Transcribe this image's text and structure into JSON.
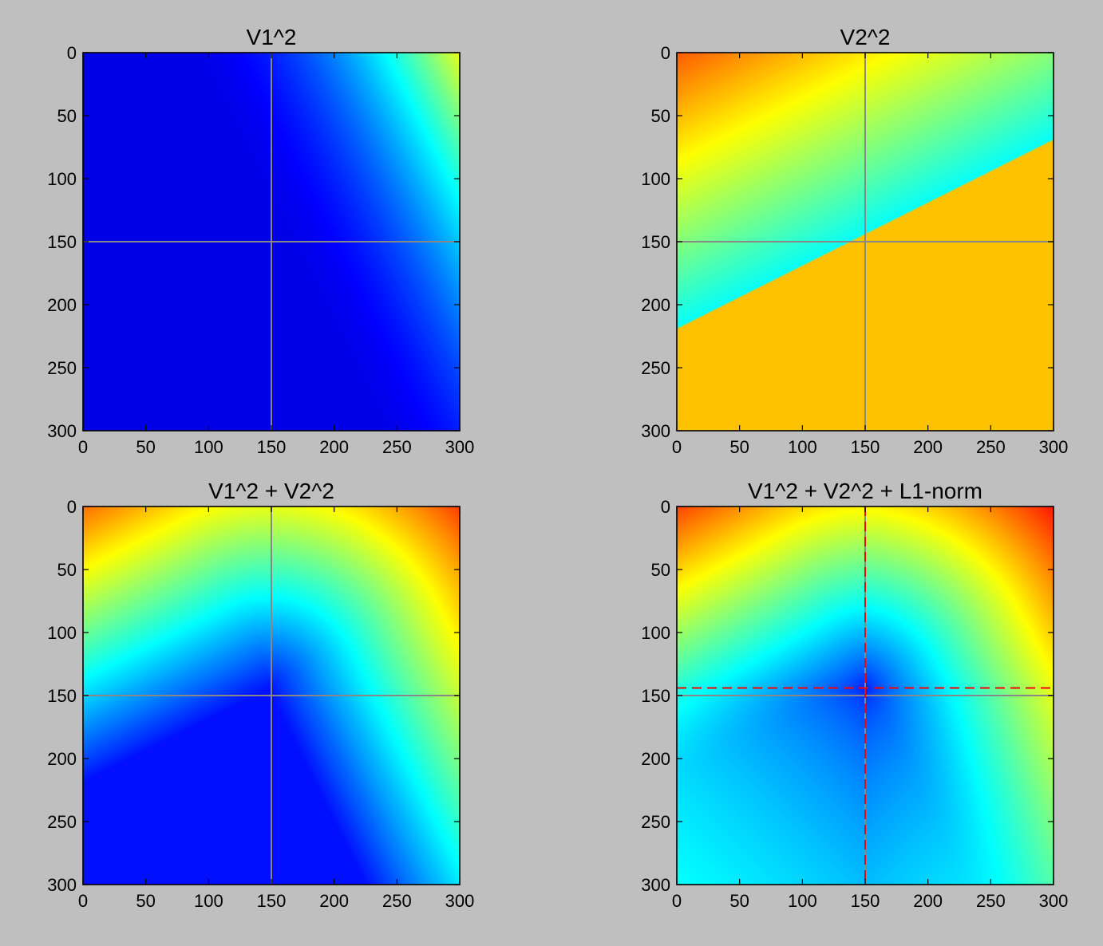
{
  "figure": {
    "background": "#bfbfbf"
  },
  "chart_data": [
    {
      "type": "heatmap",
      "title": "V1^2",
      "xlabel": "",
      "ylabel": "",
      "xlim": [
        0,
        300
      ],
      "ylim": [
        300,
        0
      ],
      "x_ticks": [
        "0",
        "50",
        "100",
        "150",
        "200",
        "250",
        "300"
      ],
      "y_ticks": [
        "0",
        "50",
        "100",
        "150",
        "200",
        "250",
        "300"
      ],
      "colormap": "jet",
      "reference_lines": {
        "x": 150,
        "y": 150,
        "color": "#888888"
      },
      "function": "v1sq",
      "dashed_lines": null
    },
    {
      "type": "heatmap",
      "title": "V2^2",
      "xlabel": "",
      "ylabel": "",
      "xlim": [
        0,
        300
      ],
      "ylim": [
        300,
        0
      ],
      "x_ticks": [
        "0",
        "50",
        "100",
        "150",
        "200",
        "250",
        "300"
      ],
      "y_ticks": [
        "0",
        "50",
        "100",
        "150",
        "200",
        "250",
        "300"
      ],
      "colormap": "jet",
      "reference_lines": {
        "x": 150,
        "y": 150,
        "color": "#888888"
      },
      "function": "v2sq",
      "dashed_lines": null
    },
    {
      "type": "heatmap",
      "title": "V1^2 + V2^2",
      "xlabel": "",
      "ylabel": "",
      "xlim": [
        0,
        300
      ],
      "ylim": [
        300,
        0
      ],
      "x_ticks": [
        "0",
        "50",
        "100",
        "150",
        "200",
        "250",
        "300"
      ],
      "y_ticks": [
        "0",
        "50",
        "100",
        "150",
        "200",
        "250",
        "300"
      ],
      "colormap": "jet",
      "reference_lines": {
        "x": 150,
        "y": 150,
        "color": "#888888"
      },
      "function": "sum",
      "dashed_lines": null
    },
    {
      "type": "heatmap",
      "title": "V1^2 + V2^2 + L1-norm",
      "xlabel": "",
      "ylabel": "",
      "xlim": [
        0,
        300
      ],
      "ylim": [
        300,
        0
      ],
      "x_ticks": [
        "0",
        "50",
        "100",
        "150",
        "200",
        "250",
        "300"
      ],
      "y_ticks": [
        "0",
        "50",
        "100",
        "150",
        "200",
        "250",
        "300"
      ],
      "colormap": "jet",
      "reference_lines": {
        "x": 150,
        "y": 150,
        "color": "#888888"
      },
      "function": "sum_l1",
      "dashed_lines": {
        "x": 150,
        "y": 144,
        "color": "#ff0000"
      }
    }
  ]
}
